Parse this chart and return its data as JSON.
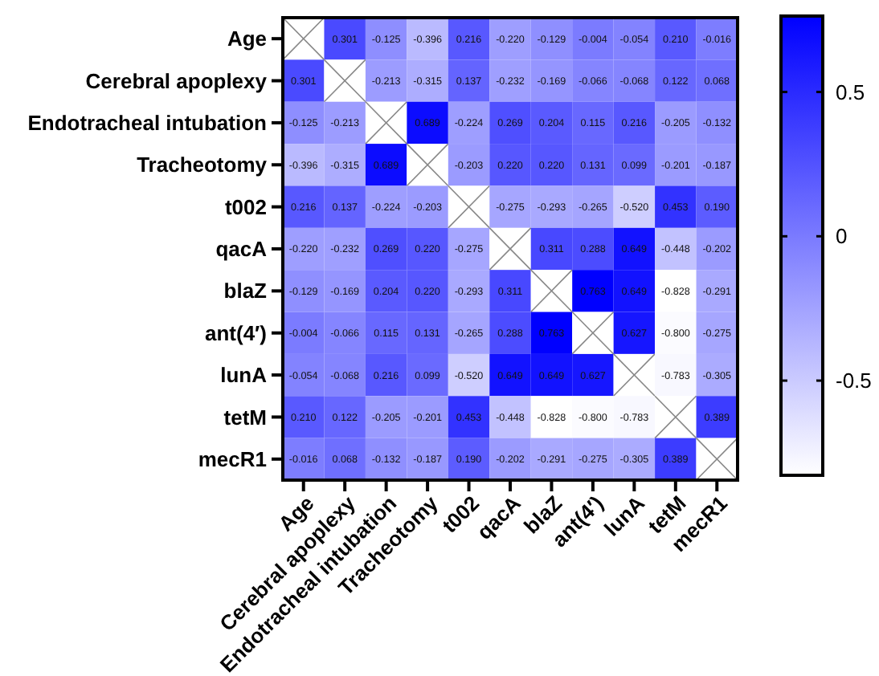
{
  "chart_data": {
    "type": "heatmap",
    "categories": [
      "Age",
      "Cerebral apoplexy",
      "Endotracheal intubation",
      "Tracheotomy",
      "t002",
      "qacA",
      "blaZ",
      "ant(4′)",
      "lunA",
      "tetM",
      "mecR1"
    ],
    "y_categories": [
      "Age",
      "Cerebral apoplexy",
      "Endotracheal intubation",
      "Tracheotomy",
      "t002",
      "qacA",
      "blaZ",
      "ant(4′)",
      "lunA",
      "tetM",
      "mecR1"
    ],
    "cells": [
      [
        null,
        0.301,
        -0.125,
        -0.396,
        0.216,
        -0.22,
        -0.129,
        -0.004,
        -0.054,
        0.21,
        -0.016
      ],
      [
        0.301,
        null,
        -0.213,
        -0.315,
        0.137,
        -0.232,
        -0.169,
        -0.066,
        -0.068,
        0.122,
        0.068
      ],
      [
        -0.125,
        -0.213,
        null,
        0.689,
        -0.224,
        0.269,
        0.204,
        0.115,
        0.216,
        -0.205,
        -0.132
      ],
      [
        -0.396,
        -0.315,
        0.689,
        null,
        -0.203,
        0.22,
        0.22,
        0.131,
        0.099,
        -0.201,
        -0.187
      ],
      [
        0.216,
        0.137,
        -0.224,
        -0.203,
        null,
        -0.275,
        -0.293,
        -0.265,
        -0.52,
        0.453,
        0.19
      ],
      [
        -0.22,
        -0.232,
        0.269,
        0.22,
        -0.275,
        null,
        0.311,
        0.288,
        0.649,
        -0.448,
        -0.202
      ],
      [
        -0.129,
        -0.169,
        0.204,
        0.22,
        -0.293,
        0.311,
        null,
        0.763,
        0.649,
        -0.828,
        -0.291
      ],
      [
        -0.004,
        -0.066,
        0.115,
        0.131,
        -0.265,
        0.288,
        0.763,
        null,
        0.627,
        -0.8,
        -0.275
      ],
      [
        -0.054,
        -0.068,
        0.216,
        0.099,
        -0.52,
        0.649,
        0.649,
        0.627,
        null,
        -0.783,
        -0.305
      ],
      [
        0.21,
        0.122,
        -0.205,
        -0.201,
        0.453,
        -0.448,
        -0.828,
        -0.8,
        -0.783,
        null,
        0.389
      ],
      [
        -0.016,
        0.068,
        -0.132,
        -0.187,
        0.19,
        -0.202,
        -0.291,
        -0.275,
        -0.305,
        0.389,
        null
      ]
    ],
    "cell_labels": [
      [
        null,
        "0.301",
        "-0.125",
        "-0.396",
        "0.216",
        "-0.220",
        "-0.129",
        "-0.004",
        "-0.054",
        "0.210",
        "-0.016"
      ],
      [
        "0.301",
        null,
        "-0.213",
        "-0.315",
        "0.137",
        "-0.232",
        "-0.169",
        "-0.066",
        "-0.068",
        "0.122",
        "0.068"
      ],
      [
        "-0.125",
        "-0.213",
        null,
        "0.689",
        "-0.224",
        "0.269",
        "0.204",
        "0.115",
        "0.216",
        "-0.205",
        "-0.132"
      ],
      [
        "-0.396",
        "-0.315",
        "0.689",
        null,
        "-0.203",
        "0.220",
        "0.220",
        "0.131",
        "0.099",
        "-0.201",
        "-0.187"
      ],
      [
        "0.216",
        "0.137",
        "-0.224",
        "-0.203",
        null,
        "-0.275",
        "-0.293",
        "-0.265",
        "-0.520",
        "0.453",
        "0.190"
      ],
      [
        "-0.220",
        "-0.232",
        "0.269",
        "0.220",
        "-0.275",
        null,
        "0.311",
        "0.288",
        "0.649",
        "-0.448",
        "-0.202"
      ],
      [
        "-0.129",
        "-0.169",
        "0.204",
        "0.220",
        "-0.293",
        "0.311",
        null,
        "0.763",
        "0.649",
        "-0.828",
        "-0.291"
      ],
      [
        "-0.004",
        "-0.066",
        "0.115",
        "0.131",
        "-0.265",
        "0.288",
        "0.763",
        null,
        "0.627",
        "-0.800",
        "-0.275"
      ],
      [
        "-0.054",
        "-0.068",
        "0.216",
        "0.099",
        "-0.520",
        "0.649",
        "0.649",
        "0.627",
        null,
        "-0.783",
        "-0.305"
      ],
      [
        "0.210",
        "0.122",
        "-0.205",
        "-0.201",
        "0.453",
        "-0.448",
        "-0.828",
        "-0.800",
        "-0.783",
        null,
        "0.389"
      ],
      [
        "-0.016",
        "0.068",
        "-0.132",
        "-0.187",
        "0.190",
        "-0.202",
        "-0.291",
        "-0.275",
        "-0.305",
        "0.389",
        null
      ]
    ],
    "clim": [
      -0.828,
      0.763
    ],
    "cticks": [
      -0.5,
      0,
      0.5
    ],
    "data_labels": true
  }
}
